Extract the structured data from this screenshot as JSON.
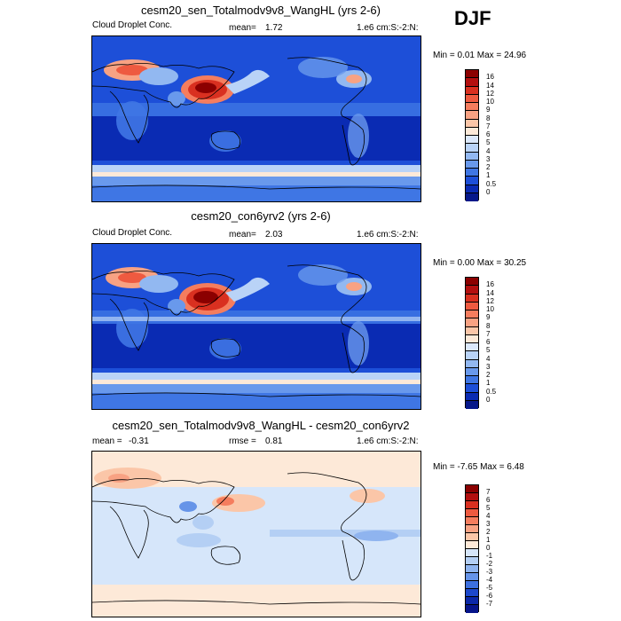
{
  "season": "DJF",
  "panels": [
    {
      "title": "cesm20_sen_Totalmodv9v8_WangHL (yrs 2-6)",
      "left": "Cloud Droplet Conc.",
      "mean_label": "mean=",
      "mean_value": "1.72",
      "units": "1.e6 cm:S:-2:N:",
      "min_label": "Min =",
      "min_value": "0.01",
      "max_label": "Max =",
      "max_value": "24.96",
      "levels": [
        "16",
        "14",
        "12",
        "10",
        "9",
        "8",
        "7",
        "6",
        "5",
        "4",
        "3",
        "2",
        "1",
        "0.5",
        "0"
      ],
      "colors": [
        "#8b0000",
        "#b30f0f",
        "#d93020",
        "#ee5a40",
        "#f57d5e",
        "#f8a283",
        "#fbc6a8",
        "#fde9d8",
        "#dbe8fb",
        "#b9d3f7",
        "#92b8f1",
        "#6999ec",
        "#3f76e4",
        "#1d4fd8",
        "#0a2bb3",
        "#06188a"
      ]
    },
    {
      "title": "cesm20_con6yrv2 (yrs 2-6)",
      "left": "Cloud Droplet Conc.",
      "mean_label": "mean=",
      "mean_value": "2.03",
      "units": "1.e6 cm:S:-2:N:",
      "min_label": "Min =",
      "min_value": "0.00",
      "max_label": "Max =",
      "max_value": "30.25",
      "levels": [
        "16",
        "14",
        "12",
        "10",
        "9",
        "8",
        "7",
        "6",
        "5",
        "4",
        "3",
        "2",
        "1",
        "0.5",
        "0"
      ],
      "colors": [
        "#8b0000",
        "#b30f0f",
        "#d93020",
        "#ee5a40",
        "#f57d5e",
        "#f8a283",
        "#fbc6a8",
        "#fde9d8",
        "#dbe8fb",
        "#b9d3f7",
        "#92b8f1",
        "#6999ec",
        "#3f76e4",
        "#1d4fd8",
        "#0a2bb3",
        "#06188a"
      ]
    },
    {
      "title": "cesm20_sen_Totalmodv9v8_WangHL - cesm20_con6yrv2",
      "left_label": "mean =",
      "left_value": "-0.31",
      "mean_label": "rmse =",
      "mean_value": "0.81",
      "units": "1.e6 cm:S:-2:N:",
      "min_label": "Min =",
      "min_value": "-7.65",
      "max_label": "Max =",
      "max_value": "6.48",
      "levels": [
        "7",
        "6",
        "5",
        "4",
        "3",
        "2",
        "1",
        "0",
        "-1",
        "-2",
        "-3",
        "-4",
        "-5",
        "-6",
        "-7"
      ],
      "colors": [
        "#8b0000",
        "#b30f0f",
        "#d93020",
        "#ee5a40",
        "#f57d5e",
        "#f8a283",
        "#fbc6a8",
        "#fde9d8",
        "#d6e6fa",
        "#b4cff4",
        "#8fb4ef",
        "#6694e8",
        "#3d70df",
        "#1c48cc",
        "#0b28a8",
        "#06148a"
      ]
    }
  ]
}
